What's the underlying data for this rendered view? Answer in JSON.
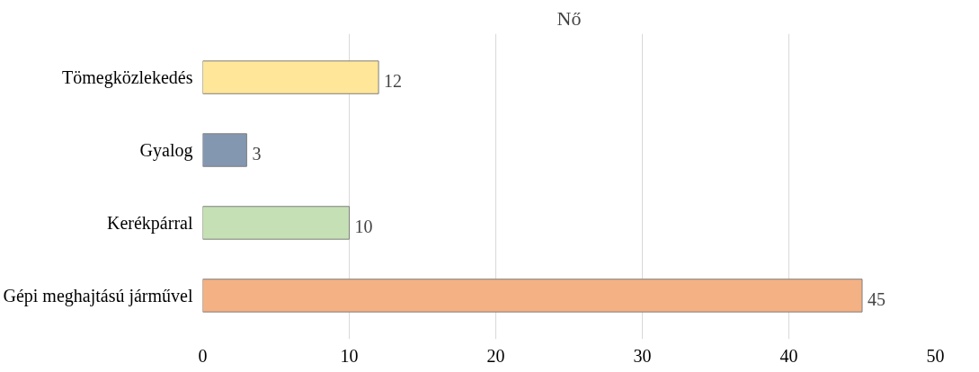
{
  "chart_data": {
    "type": "bar",
    "orientation": "horizontal",
    "title": "Nő",
    "categories": [
      "Tömegközlekedés",
      "Gyalog",
      "Kerékpárral",
      "Gépi meghajtású járművel"
    ],
    "values": [
      12,
      3,
      10,
      45
    ],
    "colors": [
      "#ffe699",
      "#8497b0",
      "#c5e0b4",
      "#f4b183"
    ],
    "xlim": [
      0,
      50
    ],
    "xticks": [
      0,
      10,
      20,
      30,
      40,
      50
    ],
    "grid": "x",
    "data_labels": true
  }
}
